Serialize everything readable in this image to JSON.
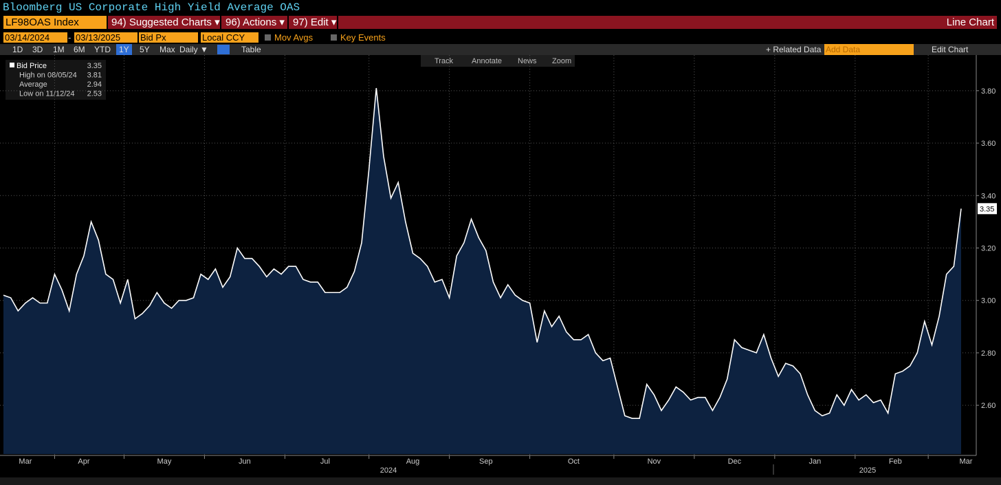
{
  "header": {
    "title": "Bloomberg US Corporate High Yield Average OAS",
    "ticker": "LF98OAS Index",
    "menus": [
      "94) Suggested Charts ▾",
      "96) Actions ▾",
      "97) Edit ▾"
    ],
    "chart_kind": "Line Chart"
  },
  "controls": {
    "start_date": "03/14/2024",
    "date_sep": "-",
    "end_date": "03/13/2025",
    "field": "Bid Px",
    "currency": "Local CCY",
    "mov_avgs": "Mov Avgs",
    "key_events": "Key Events"
  },
  "toolbar": {
    "ranges": [
      "1D",
      "3D",
      "1M",
      "6M",
      "YTD",
      "1Y",
      "5Y",
      "Max"
    ],
    "frequency": "Daily ▼",
    "table": "Table",
    "related": "+ Related Data",
    "add_data": "Add Data",
    "edit_chart": "Edit Chart"
  },
  "chart_tools": [
    "Track",
    "Annotate",
    "News",
    "Zoom"
  ],
  "legend": {
    "rows": [
      [
        "Bid Price",
        "3.35"
      ],
      [
        "High on 08/05/24",
        "3.81"
      ],
      [
        "Average",
        "2.94"
      ],
      [
        "Low on 11/12/24",
        "2.53"
      ]
    ]
  },
  "chart_data": {
    "type": "line",
    "categories": [
      null,
      null,
      null,
      "Mar",
      null,
      null,
      null,
      null,
      null,
      null,
      null,
      "Apr",
      null,
      null,
      null,
      null,
      null,
      null,
      null,
      null,
      null,
      null,
      "May",
      null,
      null,
      null,
      null,
      null,
      null,
      null,
      null,
      null,
      null,
      "Jun",
      null,
      null,
      null,
      null,
      null,
      null,
      null,
      null,
      null,
      null,
      "Jul",
      null,
      null,
      null,
      null,
      null,
      null,
      null,
      null,
      null,
      null,
      null,
      "Aug",
      null,
      null,
      null,
      null,
      null,
      null,
      null,
      null,
      null,
      "Sep",
      null,
      null,
      null,
      null,
      null,
      null,
      null,
      null,
      null,
      null,
      null,
      "Oct",
      null,
      null,
      null,
      null,
      null,
      null,
      null,
      null,
      null,
      null,
      "Nov",
      null,
      null,
      null,
      null,
      null,
      null,
      null,
      null,
      null,
      null,
      "Dec",
      null,
      null,
      null,
      null,
      null,
      null,
      null,
      null,
      null,
      null,
      "Jan",
      null,
      null,
      null,
      null,
      null,
      null,
      null,
      null,
      null,
      null,
      "Feb",
      null,
      null,
      null,
      null,
      null,
      null,
      null,
      null,
      "Mar"
    ],
    "year_labels": [
      "2024",
      "2025"
    ],
    "series": [
      {
        "name": "Bid Price",
        "color": "#ffffff",
        "fill": "#0d2240",
        "values": [
          3.02,
          3.01,
          2.96,
          2.99,
          3.01,
          2.99,
          2.99,
          3.1,
          3.04,
          2.96,
          3.1,
          3.17,
          3.3,
          3.23,
          3.1,
          3.08,
          2.99,
          3.08,
          2.93,
          2.95,
          2.98,
          3.03,
          2.99,
          2.97,
          3.0,
          3.0,
          3.01,
          3.1,
          3.08,
          3.12,
          3.05,
          3.09,
          3.2,
          3.16,
          3.16,
          3.13,
          3.09,
          3.12,
          3.1,
          3.13,
          3.13,
          3.08,
          3.07,
          3.07,
          3.03,
          3.03,
          3.03,
          3.05,
          3.11,
          3.22,
          3.5,
          3.81,
          3.55,
          3.39,
          3.45,
          3.3,
          3.18,
          3.16,
          3.13,
          3.07,
          3.08,
          3.01,
          3.17,
          3.22,
          3.31,
          3.24,
          3.19,
          3.07,
          3.01,
          3.06,
          3.02,
          3.0,
          2.99,
          2.84,
          2.96,
          2.9,
          2.94,
          2.88,
          2.85,
          2.85,
          2.87,
          2.8,
          2.77,
          2.78,
          2.67,
          2.56,
          2.55,
          2.55,
          2.68,
          2.64,
          2.58,
          2.62,
          2.67,
          2.65,
          2.62,
          2.63,
          2.63,
          2.58,
          2.63,
          2.7,
          2.85,
          2.82,
          2.81,
          2.8,
          2.87,
          2.78,
          2.71,
          2.76,
          2.75,
          2.72,
          2.64,
          2.58,
          2.56,
          2.57,
          2.64,
          2.6,
          2.66,
          2.62,
          2.64,
          2.61,
          2.62,
          2.57,
          2.72,
          2.73,
          2.75,
          2.8,
          2.92,
          2.83,
          2.94,
          3.1,
          3.13,
          3.35
        ]
      }
    ],
    "ylim": [
      2.414,
      3.936
    ],
    "yticks": [
      {
        "value": 2.6,
        "label": "2.60"
      },
      {
        "value": 2.8,
        "label": "2.80"
      },
      {
        "value": 3.0,
        "label": "3.00"
      },
      {
        "value": 3.2,
        "label": "3.20"
      },
      {
        "value": 3.4,
        "label": "3.40"
      },
      {
        "value": 3.6,
        "label": "3.60"
      },
      {
        "value": 3.8,
        "label": "3.80"
      }
    ],
    "grid": true
  }
}
